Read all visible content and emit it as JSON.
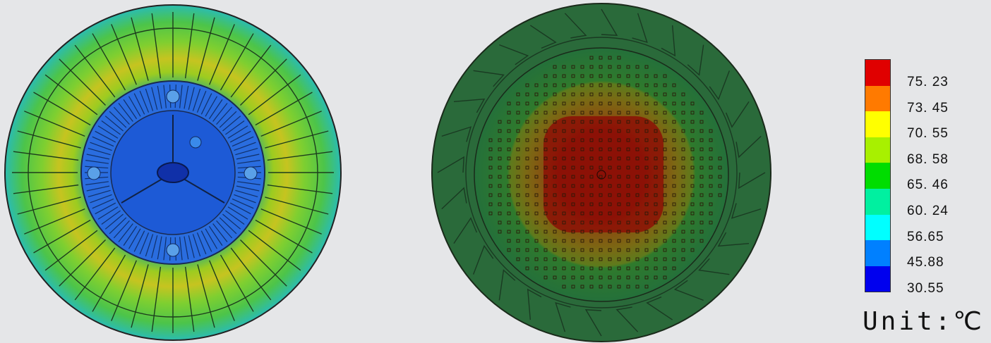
{
  "legend": {
    "entries": [
      {
        "value": "75. 23",
        "color": "#e00000"
      },
      {
        "value": "73. 45",
        "color": "#ff7a00"
      },
      {
        "value": "70. 55",
        "color": "#ffff00"
      },
      {
        "value": "68. 58",
        "color": "#a8f000"
      },
      {
        "value": "65. 46",
        "color": "#00dd00"
      },
      {
        "value": "60. 24",
        "color": "#00f0a0"
      },
      {
        "value": "56.65",
        "color": "#00ffff"
      },
      {
        "value": "45.88",
        "color": "#0080ff"
      },
      {
        "value": "30.55",
        "color": "#0000ee"
      }
    ],
    "unit_label": "Unit:℃"
  },
  "images": {
    "left": "thermal-simulation-fan-front",
    "right": "thermal-simulation-fan-back"
  }
}
